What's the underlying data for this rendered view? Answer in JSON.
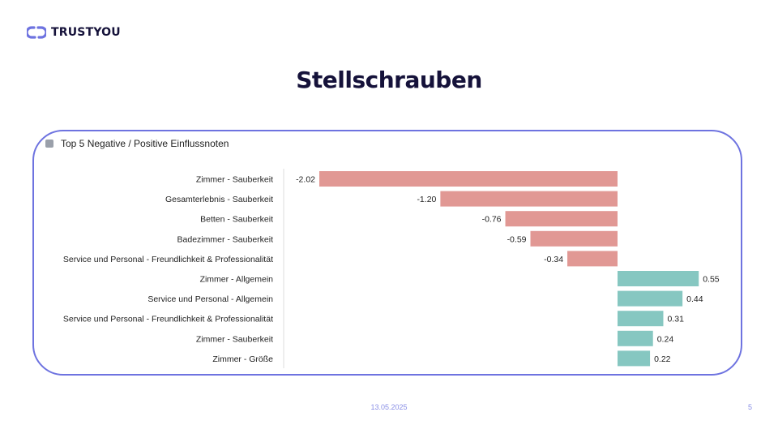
{
  "brand": {
    "name": "TRUSTYOU",
    "icon": "link-chain-icon",
    "accent": "#6e73e0"
  },
  "slide": {
    "title": "Stellschrauben",
    "date": "13.05.2025",
    "page": "5"
  },
  "colors": {
    "negative": "#e19894",
    "positive": "#86c7c1",
    "panel_border": "#6e73e0"
  },
  "chart_data": {
    "type": "bar",
    "orientation": "horizontal",
    "title": "Top 5 Negative / Positive Einflussnoten",
    "categories": [
      "Zimmer - Sauberkeit",
      "Gesamterlebnis - Sauberkeit",
      "Betten - Sauberkeit",
      "Badezimmer - Sauberkeit",
      "Service und Personal - Freundlichkeit & Professionalität",
      "Zimmer - Allgemein",
      "Service und Personal - Allgemein",
      "Service und Personal - Freundlichkeit & Professionalität",
      "Zimmer - Sauberkeit",
      "Zimmer - Größe"
    ],
    "values": [
      -2.02,
      -1.2,
      -0.76,
      -0.59,
      -0.34,
      0.55,
      0.44,
      0.31,
      0.24,
      0.22
    ],
    "value_labels": [
      "-2.02",
      "-1.20",
      "-0.76",
      "-0.59",
      "-0.34",
      "0.55",
      "0.44",
      "0.31",
      "0.24",
      "0.22"
    ],
    "xlim": [
      -2.02,
      0.55
    ],
    "grid": false,
    "legend": "none"
  }
}
